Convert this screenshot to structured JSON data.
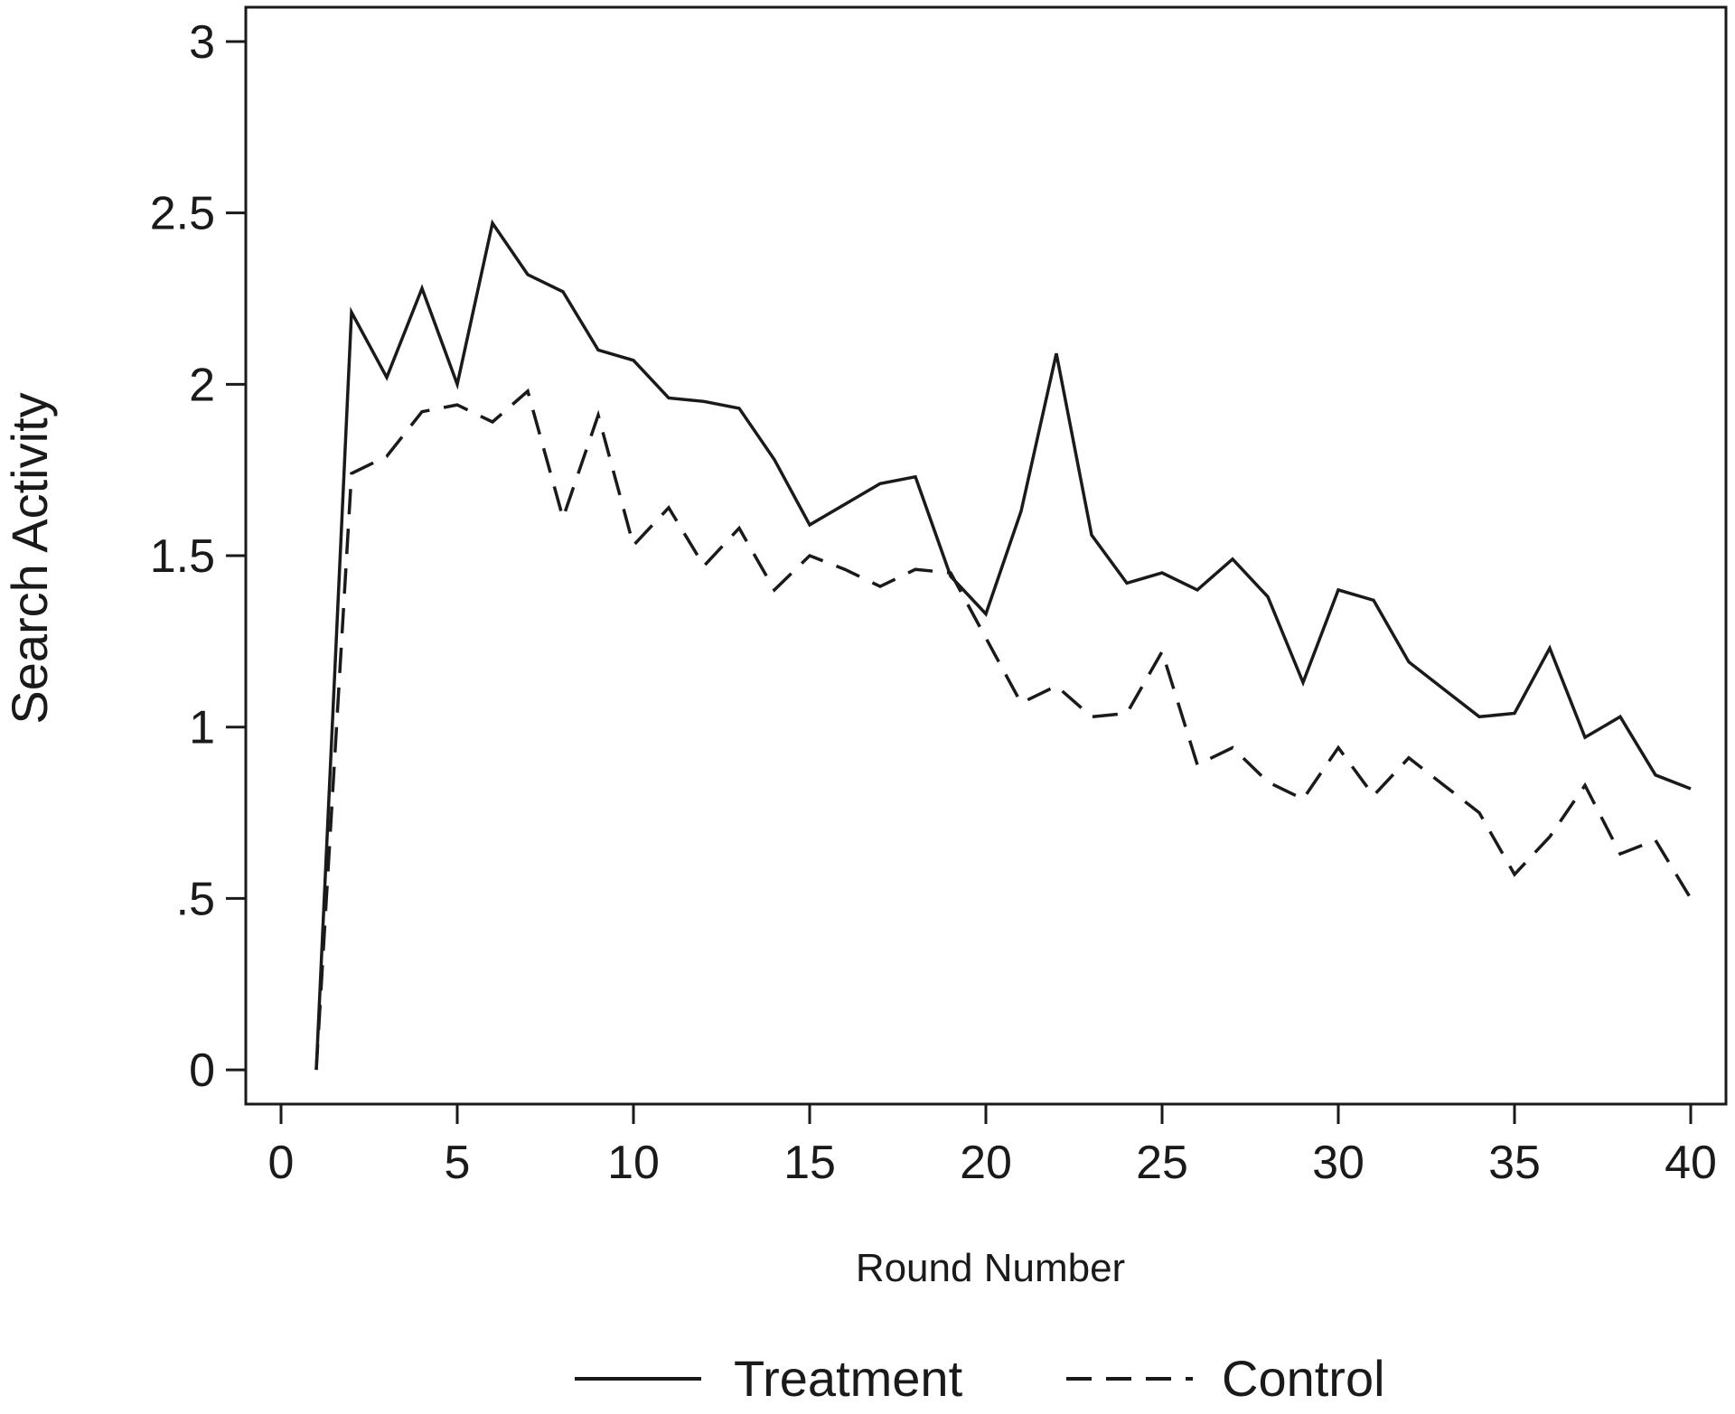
{
  "chart_data": {
    "type": "line",
    "xlabel": "Round Number",
    "ylabel": "Search Activity",
    "xlim": [
      -1,
      41
    ],
    "ylim": [
      -0.1,
      3.1
    ],
    "x_ticks": [
      0,
      5,
      10,
      15,
      20,
      25,
      30,
      35,
      40
    ],
    "x_tick_labels": [
      "0",
      "5",
      "10",
      "15",
      "20",
      "25",
      "30",
      "35",
      "40"
    ],
    "y_ticks": [
      0,
      0.5,
      1,
      1.5,
      2,
      2.5,
      3
    ],
    "y_tick_labels": [
      "0",
      ".5",
      "1",
      "1.5",
      "2",
      "2.5",
      "3"
    ],
    "grid": false,
    "legend_position": "bottom",
    "x": [
      1,
      2,
      3,
      4,
      5,
      6,
      7,
      8,
      9,
      10,
      11,
      12,
      13,
      14,
      15,
      16,
      17,
      18,
      19,
      20,
      21,
      22,
      23,
      24,
      25,
      26,
      27,
      28,
      29,
      30,
      31,
      32,
      33,
      34,
      35,
      36,
      37,
      38,
      39,
      40
    ],
    "series": [
      {
        "name": "Treatment",
        "style": "solid",
        "color": "#1a1a1a",
        "values": [
          0,
          2.21,
          2.02,
          2.28,
          2.0,
          2.47,
          2.32,
          2.27,
          2.1,
          2.07,
          1.96,
          1.95,
          1.93,
          1.78,
          1.59,
          1.65,
          1.71,
          1.73,
          1.44,
          1.33,
          1.63,
          2.09,
          1.56,
          1.42,
          1.45,
          1.4,
          1.49,
          1.38,
          1.13,
          1.4,
          1.37,
          1.19,
          1.11,
          1.03,
          1.04,
          1.23,
          0.97,
          1.03,
          0.86,
          0.82
        ]
      },
      {
        "name": "Control",
        "style": "dashed",
        "color": "#1a1a1a",
        "values": [
          0,
          1.74,
          1.79,
          1.92,
          1.94,
          1.89,
          1.98,
          1.61,
          1.91,
          1.53,
          1.64,
          1.47,
          1.58,
          1.4,
          1.5,
          1.46,
          1.41,
          1.46,
          1.45,
          1.26,
          1.07,
          1.12,
          1.03,
          1.04,
          1.22,
          0.89,
          0.94,
          0.84,
          0.79,
          0.94,
          0.8,
          0.91,
          0.83,
          0.75,
          0.57,
          0.68,
          0.83,
          0.63,
          0.67,
          0.5
        ]
      }
    ]
  }
}
